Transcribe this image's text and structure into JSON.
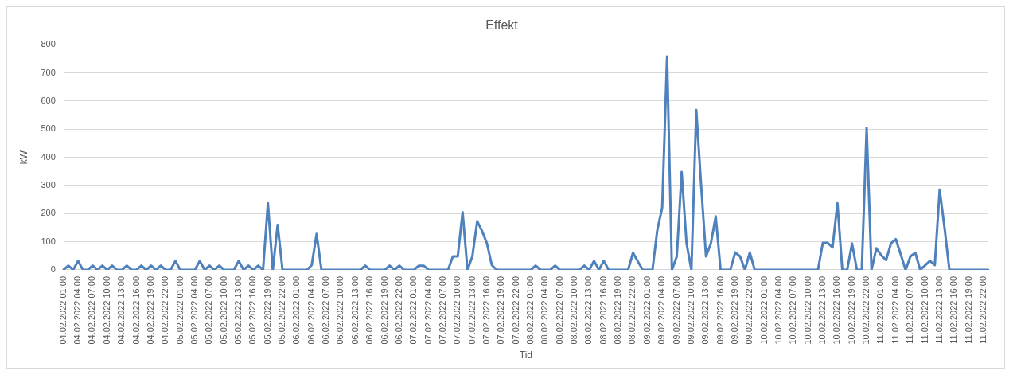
{
  "chart_data": {
    "type": "line",
    "title": "Effekt",
    "xlabel": "Tid",
    "ylabel": "kW",
    "categories": [
      "04.02.2022 01:00",
      null,
      null,
      "04.02.2022 04:00",
      null,
      null,
      "04.02.2022 07:00",
      null,
      null,
      "04.02.2022 10:00",
      null,
      null,
      "04.02.2022 13:00",
      null,
      null,
      "04.02.2022 16:00",
      null,
      null,
      "04.02.2022 19:00",
      null,
      null,
      "04.02.2022 22:00",
      null,
      null,
      "05.02.2022 01:00",
      null,
      null,
      "05.02.2022 04:00",
      null,
      null,
      "05.02.2022 07:00",
      null,
      null,
      "05.02.2022 10:00",
      null,
      null,
      "05.02.2022 13:00",
      null,
      null,
      "05.02.2022 16:00",
      null,
      null,
      "05.02.2022 19:00",
      null,
      null,
      "05.02.2022 22:00",
      null,
      null,
      "06.02.2022 01:00",
      null,
      null,
      "06.02.2022 04:00",
      null,
      null,
      "06.02.2022 07:00",
      null,
      null,
      "06.02.2022 10:00",
      null,
      null,
      "06.02.2022 13:00",
      null,
      null,
      "06.02.2022 16:00",
      null,
      null,
      "06.02.2022 19:00",
      null,
      null,
      "06.02.2022 22:00",
      null,
      null,
      "07.02.2022 01:00",
      null,
      null,
      "07.02.2022 04:00",
      null,
      null,
      "07.02.2022 07:00",
      null,
      null,
      "07.02.2022 10:00",
      null,
      null,
      "07.02.2022 13:00",
      null,
      null,
      "07.02.2022 16:00",
      null,
      null,
      "07.02.2022 19:00",
      null,
      null,
      "07.02.2022 22:00",
      null,
      null,
      "08.02.2022 01:00",
      null,
      null,
      "08.02.2022 04:00",
      null,
      null,
      "08.02.2022 07:00",
      null,
      null,
      "08.02.2022 10:00",
      null,
      null,
      "08.02.2022 13:00",
      null,
      null,
      "08.02.2022 16:00",
      null,
      null,
      "08.02.2022 19:00",
      null,
      null,
      "08.02.2022 22:00",
      null,
      null,
      "09.02.2022 01:00",
      null,
      null,
      "09.02.2022 04:00",
      null,
      null,
      "09.02.2022 07:00",
      null,
      null,
      "09.02.2022 10:00",
      null,
      null,
      "09.02.2022 13:00",
      null,
      null,
      "09.02.2022 16:00",
      null,
      null,
      "09.02.2022 19:00",
      null,
      null,
      "09.02.2022 22:00",
      null,
      null,
      "10.02.2022 01:00",
      null,
      null,
      "10.02.2022 04:00",
      null,
      null,
      "10.02.2022 07:00",
      null,
      null,
      "10.02.2022 10:00",
      null,
      null,
      "10.02.2022 13:00",
      null,
      null,
      "10.02.2022 16:00",
      null,
      null,
      "10.02.2022 19:00",
      null,
      null,
      "10.02.2022 22:00",
      null,
      null,
      "11.02.2022 01:00",
      null,
      null,
      "11.02.2022 04:00",
      null,
      null,
      "11.02.2022 07:00",
      null,
      null,
      "11.02.2022 10:00",
      null,
      null,
      "11.02.2022 13:00",
      null,
      null,
      "11.02.2022 16:00",
      null,
      null,
      "11.02.2022 19:00",
      null,
      null,
      "11.02.2022 22:00",
      null
    ],
    "series": [
      {
        "color": "#4f81bd",
        "values": [
          0,
          15,
          0,
          32,
          0,
          0,
          15,
          0,
          15,
          0,
          15,
          0,
          0,
          15,
          0,
          0,
          15,
          0,
          15,
          0,
          15,
          0,
          0,
          32,
          0,
          0,
          0,
          0,
          32,
          0,
          15,
          0,
          15,
          0,
          0,
          0,
          32,
          0,
          15,
          0,
          15,
          0,
          237,
          0,
          160,
          0,
          0,
          0,
          0,
          0,
          0,
          17,
          128,
          0,
          0,
          0,
          0,
          0,
          0,
          0,
          0,
          0,
          15,
          0,
          0,
          0,
          0,
          15,
          0,
          15,
          0,
          0,
          0,
          15,
          15,
          0,
          0,
          0,
          0,
          0,
          48,
          48,
          205,
          0,
          48,
          173,
          138,
          94,
          17,
          0,
          0,
          0,
          0,
          0,
          0,
          0,
          0,
          15,
          0,
          0,
          0,
          15,
          0,
          0,
          0,
          0,
          0,
          15,
          0,
          32,
          0,
          32,
          0,
          0,
          0,
          0,
          0,
          61,
          30,
          0,
          0,
          0,
          142,
          221,
          758,
          0,
          48,
          348,
          94,
          0,
          568,
          300,
          48,
          94,
          190,
          0,
          0,
          0,
          62,
          48,
          0,
          62,
          0,
          0,
          0,
          0,
          0,
          0,
          0,
          0,
          0,
          0,
          0,
          0,
          0,
          0,
          96,
          96,
          80,
          237,
          0,
          0,
          94,
          0,
          0,
          505,
          0,
          77,
          52,
          35,
          94,
          109,
          55,
          0,
          48,
          61,
          0,
          16,
          32,
          17,
          285,
          150,
          0,
          0,
          0,
          0,
          0,
          0,
          0,
          0,
          0
        ]
      }
    ],
    "ylim": [
      0,
      800
    ],
    "yticks": [
      0,
      100,
      200,
      300,
      400,
      500,
      600,
      700,
      800
    ],
    "grid": "y",
    "legend": false,
    "marker": "none",
    "line_style": "solid"
  }
}
